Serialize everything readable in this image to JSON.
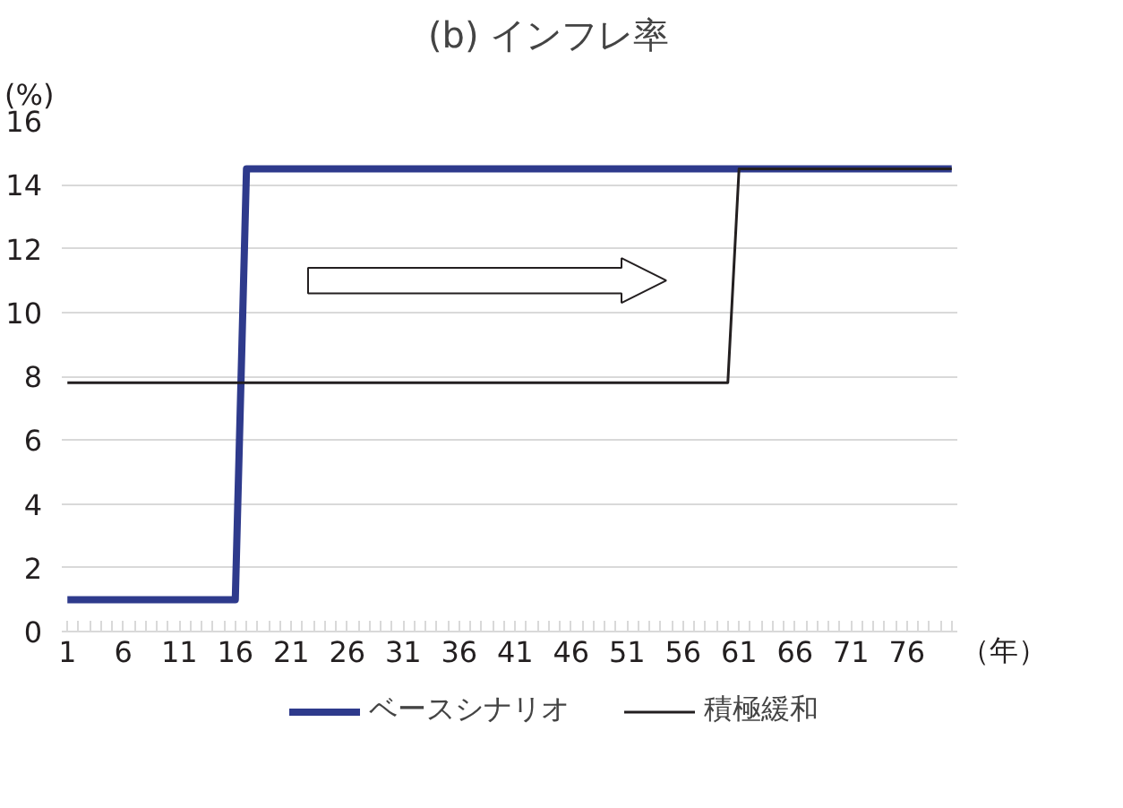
{
  "chart_data": {
    "type": "line",
    "title": "(b)  インフレ率",
    "xlabel": "（年）",
    "ylabel": "(%)",
    "xlim": [
      0.5,
      80.5
    ],
    "xticks": [
      1,
      6,
      11,
      16,
      21,
      26,
      31,
      36,
      41,
      46,
      51,
      56,
      61,
      66,
      71,
      76
    ],
    "ylim": [
      0,
      16
    ],
    "yticks": [
      0,
      2,
      4,
      6,
      8,
      10,
      12,
      14,
      16
    ],
    "grid": "y",
    "legend": "bottom",
    "marker": "none",
    "line_style": "solid",
    "series": [
      {
        "name": "ベースシナリオ",
        "color": "#2e3a8c",
        "x": [
          1,
          16,
          17,
          80
        ],
        "values": [
          1,
          1,
          14.5,
          14.5
        ]
      },
      {
        "name": "積極緩和",
        "color": "#231f20",
        "x": [
          1,
          60,
          61,
          80
        ],
        "values": [
          7.8,
          7.8,
          14.5,
          14.5
        ]
      }
    ]
  }
}
